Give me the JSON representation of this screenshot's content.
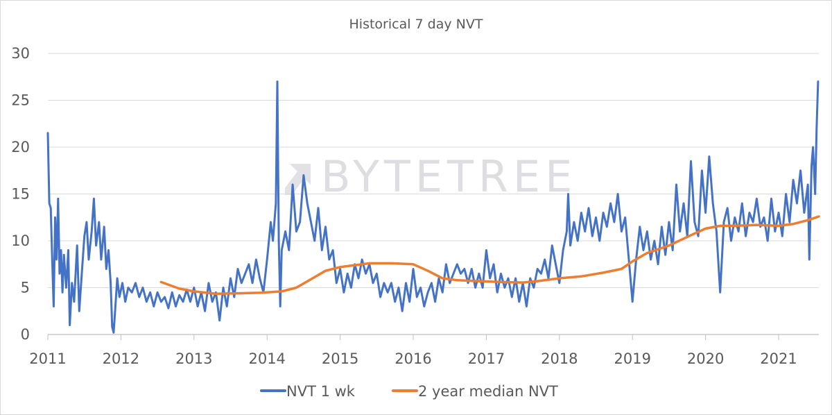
{
  "chart_data": {
    "type": "line",
    "title": "Historical 7 day NVT",
    "watermark": "BYTETREE",
    "xlim": [
      2011,
      2021.55
    ],
    "ylim": [
      0,
      30
    ],
    "yticks": [
      0,
      5,
      10,
      15,
      20,
      25,
      30
    ],
    "xticks": [
      "2011",
      "2012",
      "2013",
      "2014",
      "2015",
      "2016",
      "2017",
      "2018",
      "2019",
      "2020",
      "2021"
    ],
    "grid": true,
    "legend_position": "bottom",
    "series": [
      {
        "name": "NVT 1 wk",
        "color": "#4472C4",
        "points": [
          [
            2011.0,
            21.5
          ],
          [
            2011.02,
            14.0
          ],
          [
            2011.04,
            13.5
          ],
          [
            2011.06,
            8.0
          ],
          [
            2011.08,
            3.0
          ],
          [
            2011.1,
            12.5
          ],
          [
            2011.12,
            8.0
          ],
          [
            2011.14,
            14.5
          ],
          [
            2011.16,
            6.5
          ],
          [
            2011.18,
            9.0
          ],
          [
            2011.2,
            4.5
          ],
          [
            2011.22,
            8.5
          ],
          [
            2011.25,
            5.0
          ],
          [
            2011.28,
            9.0
          ],
          [
            2011.3,
            1.0
          ],
          [
            2011.33,
            5.5
          ],
          [
            2011.36,
            3.5
          ],
          [
            2011.4,
            9.5
          ],
          [
            2011.43,
            2.5
          ],
          [
            2011.46,
            6.0
          ],
          [
            2011.5,
            10.5
          ],
          [
            2011.53,
            12.0
          ],
          [
            2011.56,
            8.0
          ],
          [
            2011.6,
            11.0
          ],
          [
            2011.63,
            14.5
          ],
          [
            2011.66,
            9.5
          ],
          [
            2011.7,
            12.0
          ],
          [
            2011.73,
            8.0
          ],
          [
            2011.77,
            11.5
          ],
          [
            2011.8,
            7.0
          ],
          [
            2011.83,
            9.0
          ],
          [
            2011.86,
            5.5
          ],
          [
            2011.88,
            0.8
          ],
          [
            2011.9,
            0.2
          ],
          [
            2011.92,
            2.5
          ],
          [
            2011.95,
            6.0
          ],
          [
            2011.98,
            4.0
          ],
          [
            2012.02,
            5.5
          ],
          [
            2012.06,
            3.5
          ],
          [
            2012.1,
            5.0
          ],
          [
            2012.15,
            4.5
          ],
          [
            2012.2,
            5.5
          ],
          [
            2012.25,
            4.0
          ],
          [
            2012.3,
            5.0
          ],
          [
            2012.35,
            3.5
          ],
          [
            2012.4,
            4.5
          ],
          [
            2012.45,
            3.0
          ],
          [
            2012.5,
            4.5
          ],
          [
            2012.55,
            3.5
          ],
          [
            2012.6,
            4.0
          ],
          [
            2012.65,
            2.8
          ],
          [
            2012.7,
            4.5
          ],
          [
            2012.75,
            3.0
          ],
          [
            2012.8,
            4.2
          ],
          [
            2012.85,
            3.5
          ],
          [
            2012.9,
            4.8
          ],
          [
            2012.95,
            3.5
          ],
          [
            2013.0,
            5.0
          ],
          [
            2013.05,
            3.0
          ],
          [
            2013.1,
            4.5
          ],
          [
            2013.15,
            2.5
          ],
          [
            2013.2,
            5.5
          ],
          [
            2013.25,
            3.5
          ],
          [
            2013.3,
            4.5
          ],
          [
            2013.35,
            1.5
          ],
          [
            2013.4,
            5.0
          ],
          [
            2013.45,
            3.0
          ],
          [
            2013.5,
            6.0
          ],
          [
            2013.55,
            4.0
          ],
          [
            2013.6,
            7.0
          ],
          [
            2013.65,
            5.5
          ],
          [
            2013.7,
            6.5
          ],
          [
            2013.75,
            7.5
          ],
          [
            2013.8,
            5.5
          ],
          [
            2013.85,
            8.0
          ],
          [
            2013.9,
            6.0
          ],
          [
            2013.95,
            4.5
          ],
          [
            2014.0,
            8.0
          ],
          [
            2014.05,
            12.0
          ],
          [
            2014.08,
            10.0
          ],
          [
            2014.12,
            14.0
          ],
          [
            2014.14,
            27.0
          ],
          [
            2014.16,
            10.0
          ],
          [
            2014.18,
            3.0
          ],
          [
            2014.2,
            9.0
          ],
          [
            2014.25,
            11.0
          ],
          [
            2014.3,
            9.0
          ],
          [
            2014.35,
            16.0
          ],
          [
            2014.4,
            11.0
          ],
          [
            2014.45,
            12.0
          ],
          [
            2014.5,
            17.0
          ],
          [
            2014.55,
            14.0
          ],
          [
            2014.6,
            12.0
          ],
          [
            2014.65,
            10.0
          ],
          [
            2014.7,
            13.5
          ],
          [
            2014.75,
            9.0
          ],
          [
            2014.8,
            11.5
          ],
          [
            2014.85,
            8.0
          ],
          [
            2014.9,
            9.0
          ],
          [
            2014.95,
            5.5
          ],
          [
            2015.0,
            7.0
          ],
          [
            2015.05,
            4.5
          ],
          [
            2015.1,
            6.5
          ],
          [
            2015.15,
            5.0
          ],
          [
            2015.2,
            7.5
          ],
          [
            2015.25,
            6.0
          ],
          [
            2015.3,
            8.0
          ],
          [
            2015.35,
            6.5
          ],
          [
            2015.4,
            7.5
          ],
          [
            2015.45,
            5.5
          ],
          [
            2015.5,
            6.5
          ],
          [
            2015.55,
            4.0
          ],
          [
            2015.6,
            5.5
          ],
          [
            2015.65,
            4.5
          ],
          [
            2015.7,
            5.5
          ],
          [
            2015.75,
            3.5
          ],
          [
            2015.8,
            5.0
          ],
          [
            2015.85,
            2.5
          ],
          [
            2015.9,
            5.5
          ],
          [
            2015.95,
            3.5
          ],
          [
            2016.0,
            7.0
          ],
          [
            2016.05,
            4.0
          ],
          [
            2016.1,
            5.0
          ],
          [
            2016.15,
            3.0
          ],
          [
            2016.2,
            4.5
          ],
          [
            2016.25,
            5.5
          ],
          [
            2016.3,
            3.5
          ],
          [
            2016.35,
            6.0
          ],
          [
            2016.4,
            4.5
          ],
          [
            2016.45,
            7.5
          ],
          [
            2016.5,
            5.5
          ],
          [
            2016.55,
            6.5
          ],
          [
            2016.6,
            7.5
          ],
          [
            2016.65,
            6.5
          ],
          [
            2016.7,
            7.0
          ],
          [
            2016.75,
            5.5
          ],
          [
            2016.8,
            7.0
          ],
          [
            2016.85,
            5.0
          ],
          [
            2016.9,
            6.5
          ],
          [
            2016.95,
            5.0
          ],
          [
            2017.0,
            9.0
          ],
          [
            2017.05,
            6.0
          ],
          [
            2017.1,
            7.5
          ],
          [
            2017.15,
            4.5
          ],
          [
            2017.2,
            6.5
          ],
          [
            2017.25,
            5.0
          ],
          [
            2017.3,
            6.0
          ],
          [
            2017.35,
            4.0
          ],
          [
            2017.4,
            6.0
          ],
          [
            2017.45,
            3.5
          ],
          [
            2017.5,
            5.5
          ],
          [
            2017.55,
            3.0
          ],
          [
            2017.6,
            6.0
          ],
          [
            2017.65,
            5.0
          ],
          [
            2017.7,
            7.0
          ],
          [
            2017.75,
            6.5
          ],
          [
            2017.8,
            8.0
          ],
          [
            2017.85,
            6.0
          ],
          [
            2017.9,
            9.5
          ],
          [
            2017.95,
            7.5
          ],
          [
            2018.0,
            5.5
          ],
          [
            2018.05,
            9.0
          ],
          [
            2018.1,
            11.0
          ],
          [
            2018.12,
            15.0
          ],
          [
            2018.15,
            9.5
          ],
          [
            2018.2,
            12.0
          ],
          [
            2018.25,
            10.0
          ],
          [
            2018.3,
            13.0
          ],
          [
            2018.35,
            11.0
          ],
          [
            2018.4,
            13.5
          ],
          [
            2018.45,
            10.5
          ],
          [
            2018.5,
            12.5
          ],
          [
            2018.55,
            10.0
          ],
          [
            2018.6,
            13.0
          ],
          [
            2018.65,
            11.5
          ],
          [
            2018.7,
            14.0
          ],
          [
            2018.75,
            12.0
          ],
          [
            2018.8,
            15.0
          ],
          [
            2018.85,
            11.0
          ],
          [
            2018.9,
            12.5
          ],
          [
            2018.95,
            8.0
          ],
          [
            2019.0,
            3.5
          ],
          [
            2019.05,
            8.0
          ],
          [
            2019.1,
            11.5
          ],
          [
            2019.15,
            9.0
          ],
          [
            2019.2,
            11.0
          ],
          [
            2019.25,
            8.0
          ],
          [
            2019.3,
            10.0
          ],
          [
            2019.35,
            7.5
          ],
          [
            2019.4,
            11.5
          ],
          [
            2019.45,
            8.5
          ],
          [
            2019.5,
            12.0
          ],
          [
            2019.55,
            9.0
          ],
          [
            2019.6,
            16.0
          ],
          [
            2019.65,
            11.0
          ],
          [
            2019.7,
            14.0
          ],
          [
            2019.75,
            10.5
          ],
          [
            2019.8,
            18.5
          ],
          [
            2019.85,
            12.0
          ],
          [
            2019.9,
            10.5
          ],
          [
            2019.95,
            17.5
          ],
          [
            2020.0,
            13.0
          ],
          [
            2020.05,
            19.0
          ],
          [
            2020.1,
            14.0
          ],
          [
            2020.15,
            11.0
          ],
          [
            2020.2,
            4.5
          ],
          [
            2020.25,
            12.0
          ],
          [
            2020.3,
            13.5
          ],
          [
            2020.35,
            10.0
          ],
          [
            2020.4,
            12.5
          ],
          [
            2020.45,
            11.0
          ],
          [
            2020.5,
            14.0
          ],
          [
            2020.55,
            10.5
          ],
          [
            2020.6,
            13.0
          ],
          [
            2020.65,
            12.0
          ],
          [
            2020.7,
            14.5
          ],
          [
            2020.75,
            11.5
          ],
          [
            2020.8,
            12.5
          ],
          [
            2020.85,
            10.0
          ],
          [
            2020.9,
            14.5
          ],
          [
            2020.95,
            11.0
          ],
          [
            2021.0,
            13.0
          ],
          [
            2021.05,
            10.5
          ],
          [
            2021.1,
            15.0
          ],
          [
            2021.15,
            12.0
          ],
          [
            2021.2,
            16.5
          ],
          [
            2021.25,
            14.0
          ],
          [
            2021.3,
            17.5
          ],
          [
            2021.35,
            13.0
          ],
          [
            2021.4,
            16.0
          ],
          [
            2021.42,
            8.0
          ],
          [
            2021.45,
            18.0
          ],
          [
            2021.47,
            20.0
          ],
          [
            2021.5,
            15.0
          ],
          [
            2021.52,
            22.0
          ],
          [
            2021.54,
            27.0
          ]
        ]
      },
      {
        "name": "2 year median NVT",
        "color": "#ED7D31",
        "points": [
          [
            2012.55,
            5.6
          ],
          [
            2012.8,
            4.9
          ],
          [
            2013.0,
            4.6
          ],
          [
            2013.3,
            4.35
          ],
          [
            2013.6,
            4.4
          ],
          [
            2013.9,
            4.45
          ],
          [
            2014.2,
            4.6
          ],
          [
            2014.4,
            5.0
          ],
          [
            2014.6,
            5.9
          ],
          [
            2014.8,
            6.8
          ],
          [
            2015.0,
            7.2
          ],
          [
            2015.2,
            7.4
          ],
          [
            2015.4,
            7.6
          ],
          [
            2015.7,
            7.6
          ],
          [
            2016.0,
            7.5
          ],
          [
            2016.2,
            6.8
          ],
          [
            2016.4,
            6.0
          ],
          [
            2016.6,
            5.8
          ],
          [
            2016.9,
            5.7
          ],
          [
            2017.2,
            5.6
          ],
          [
            2017.5,
            5.55
          ],
          [
            2017.7,
            5.7
          ],
          [
            2018.0,
            6.0
          ],
          [
            2018.3,
            6.2
          ],
          [
            2018.6,
            6.6
          ],
          [
            2018.85,
            7.0
          ],
          [
            2019.0,
            7.8
          ],
          [
            2019.2,
            8.7
          ],
          [
            2019.5,
            9.5
          ],
          [
            2019.8,
            10.6
          ],
          [
            2020.0,
            11.3
          ],
          [
            2020.2,
            11.6
          ],
          [
            2020.4,
            11.6
          ],
          [
            2020.7,
            11.7
          ],
          [
            2021.0,
            11.6
          ],
          [
            2021.2,
            11.8
          ],
          [
            2021.4,
            12.2
          ],
          [
            2021.55,
            12.6
          ]
        ]
      }
    ]
  }
}
